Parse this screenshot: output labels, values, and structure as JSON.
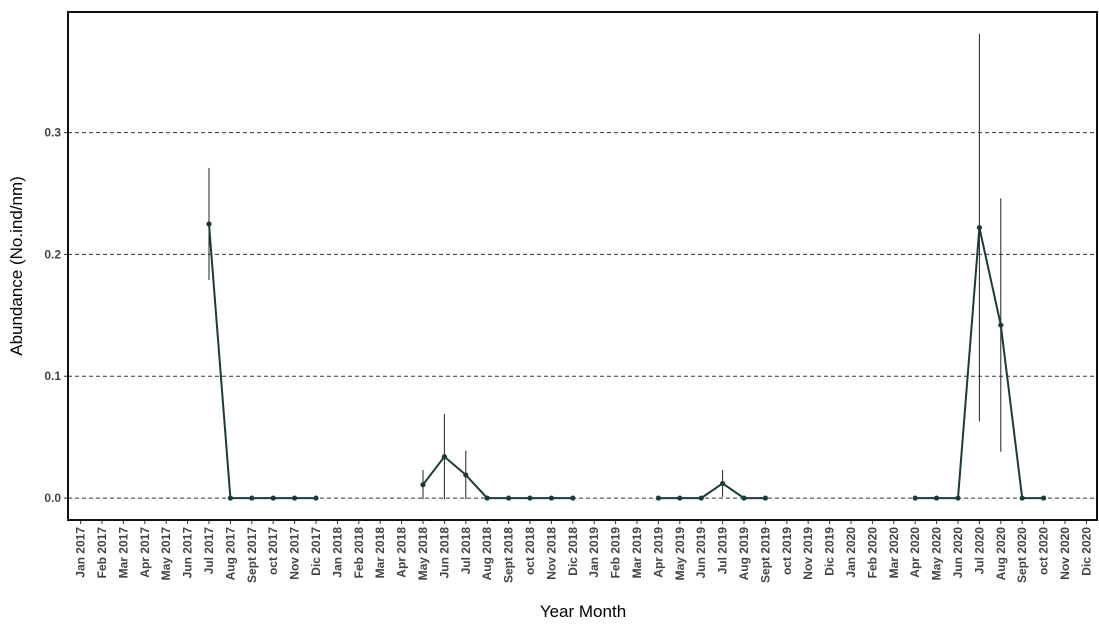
{
  "chart_data": {
    "type": "line",
    "x_label": "Year Month",
    "y_label": "Abundance (No.ind/nm)",
    "categories": [
      "Jan 2017",
      "Feb 2017",
      "Mar 2017",
      "Apr 2017",
      "May 2017",
      "Jun 2017",
      "Jul 2017",
      "Aug 2017",
      "Sept 2017",
      "oct 2017",
      "Nov 2017",
      "Dic 2017",
      "Jan 2018",
      "Feb 2018",
      "Mar 2018",
      "Apr 2018",
      "May 2018",
      "Jun 2018",
      "Jul 2018",
      "Aug 2018",
      "Sept 2018",
      "oct 2018",
      "Nov 2018",
      "Dic 2018",
      "Jan 2019",
      "Feb 2019",
      "Mar 2019",
      "Apr 2019",
      "May 2019",
      "Jun 2019",
      "Jul 2019",
      "Aug 2019",
      "Sept 2019",
      "oct 2019",
      "Nov 2019",
      "Dic 2019",
      "Jan 2020",
      "Feb 2020",
      "Mar 2020",
      "Apr 2020",
      "May 2020",
      "Jun 2020",
      "Jul 2020",
      "Aug 2020",
      "Sept 2020",
      "oct 2020",
      "Nov 2020",
      "Dic 2020"
    ],
    "series": [
      {
        "color": "#1b3b3b",
        "values": [
          null,
          null,
          null,
          null,
          null,
          null,
          0.225,
          0,
          0,
          0,
          0,
          0,
          null,
          null,
          null,
          null,
          0.011,
          0.034,
          0.019,
          0,
          0,
          0,
          0,
          0,
          null,
          null,
          null,
          0,
          0,
          0,
          0.012,
          0,
          0,
          null,
          null,
          null,
          null,
          null,
          null,
          0,
          0,
          0,
          0.222,
          0.142,
          0,
          0,
          null,
          null
        ],
        "errors": [
          null,
          null,
          null,
          null,
          null,
          null,
          0.046,
          null,
          null,
          null,
          null,
          null,
          null,
          null,
          null,
          null,
          0.012,
          0.035,
          0.02,
          null,
          null,
          null,
          null,
          null,
          null,
          null,
          null,
          null,
          null,
          null,
          0.011,
          null,
          null,
          null,
          null,
          null,
          null,
          null,
          null,
          null,
          null,
          null,
          0.159,
          0.104,
          null,
          null,
          null,
          null
        ]
      }
    ],
    "ylim": [
      -0.018,
      0.399
    ],
    "yticks": [
      {
        "value": 0,
        "label": "0.0"
      },
      0.1,
      0.2,
      0.3
    ],
    "grid": true
  }
}
